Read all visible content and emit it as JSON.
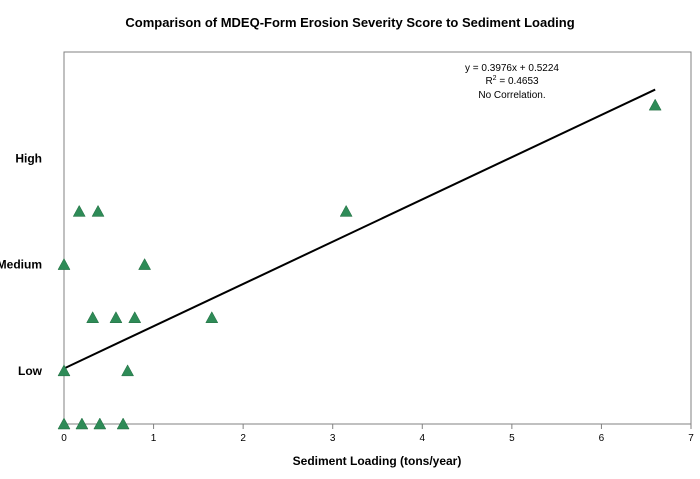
{
  "chart_data": {
    "type": "scatter",
    "title": "Comparison of MDEQ-Form Erosion Severity Score to Sediment Loading",
    "xlabel": "Sediment Loading (tons/year)",
    "ylabel": "",
    "xlim": [
      0,
      7
    ],
    "ylim": [
      0,
      3.5
    ],
    "xticks": [
      "0",
      "1",
      "2",
      "3",
      "4",
      "5",
      "6",
      "7"
    ],
    "ytick_labels": [
      {
        "label": "Low",
        "value": 0.5
      },
      {
        "label": "Medium",
        "value": 1.5
      },
      {
        "label": "High",
        "value": 2.5
      }
    ],
    "marker": "triangle",
    "marker_color": "#2e8b57",
    "grid": false,
    "points": [
      {
        "x": 0.0,
        "y": 0.0
      },
      {
        "x": 0.2,
        "y": 0.0
      },
      {
        "x": 0.4,
        "y": 0.0
      },
      {
        "x": 0.66,
        "y": 0.0
      },
      {
        "x": 0.0,
        "y": 0.5
      },
      {
        "x": 0.71,
        "y": 0.5
      },
      {
        "x": 0.32,
        "y": 1.0
      },
      {
        "x": 0.58,
        "y": 1.0
      },
      {
        "x": 0.79,
        "y": 1.0
      },
      {
        "x": 1.65,
        "y": 1.0
      },
      {
        "x": 0.0,
        "y": 1.5
      },
      {
        "x": 0.9,
        "y": 1.5
      },
      {
        "x": 0.17,
        "y": 2.0
      },
      {
        "x": 0.38,
        "y": 2.0
      },
      {
        "x": 3.15,
        "y": 2.0
      },
      {
        "x": 6.6,
        "y": 3.0
      }
    ],
    "trendline": {
      "slope": 0.3976,
      "intercept": 0.5224,
      "x_start": 0,
      "x_end": 6.6
    },
    "annotations": {
      "equation": "y = 0.3976x + 0.5224",
      "r_squared_prefix": "R",
      "r_squared_sup": "2",
      "r_squared_value": " = 0.4653",
      "note": "No Correlation."
    }
  }
}
